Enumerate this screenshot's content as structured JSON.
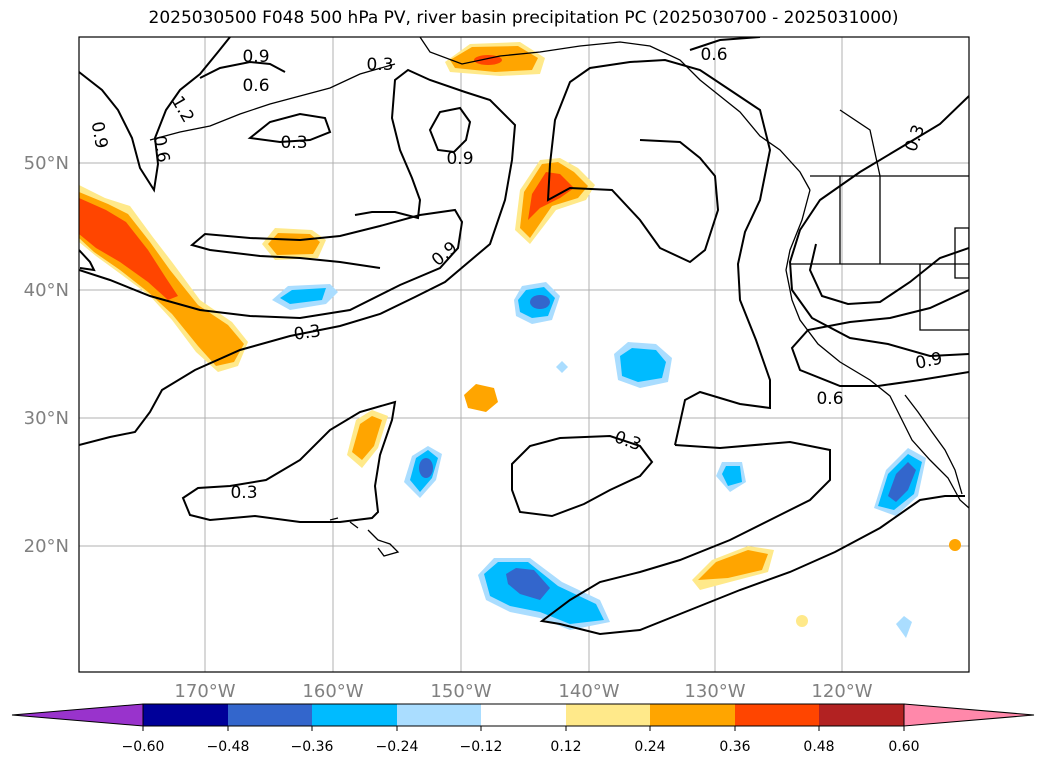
{
  "title": "2025030500 F048 500 hPa PV, river basin precipitation PC (2025030700 - 2025031000)",
  "map": {
    "lat_labels": [
      "50°N",
      "40°N",
      "30°N",
      "20°N"
    ],
    "lon_labels": [
      "170°W",
      "160°W",
      "150°W",
      "140°W",
      "130°W",
      "120°W"
    ],
    "grid": true
  },
  "contours": {
    "pv_labels": [
      "0.9",
      "0.6",
      "0.3",
      "0.6",
      "0.3",
      "1.2",
      "0.9",
      "0.6",
      "0.3",
      "0.9",
      "0.9",
      "0.3",
      "0.3",
      "0.3",
      "0.9",
      "0.6"
    ]
  },
  "colorbar": {
    "tick_labels": [
      "−0.60",
      "−0.48",
      "−0.36",
      "−0.24",
      "−0.12",
      "0.12",
      "0.24",
      "0.36",
      "0.48",
      "0.60"
    ],
    "colors": [
      "#9933cc",
      "#000099",
      "#3366cc",
      "#00bbff",
      "#aaddff",
      "#ffffff",
      "#ffe98a",
      "#ffa500",
      "#ff4500",
      "#b22222",
      "#ff88aa"
    ]
  }
}
